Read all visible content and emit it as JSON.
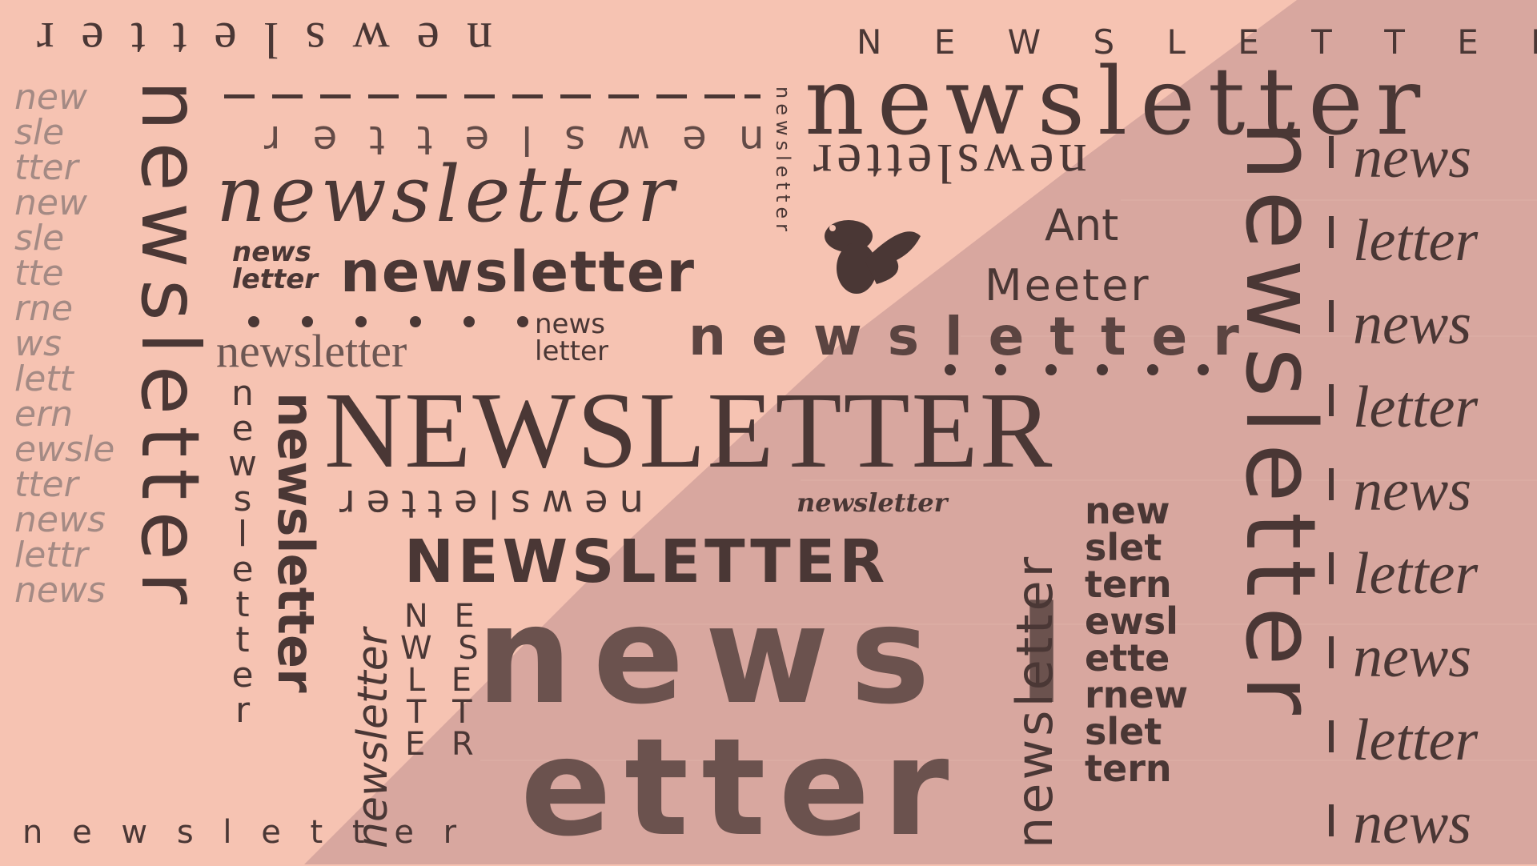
{
  "colors": {
    "bg_light": "#f6c3b2",
    "bg_dark": "#d8a79f",
    "ink": "#4a3735",
    "faded_ink": "#a48a84"
  },
  "brand": {
    "line1": "Ant",
    "line2": "Meeter",
    "mascot": "ant-mascot"
  },
  "w": "newsletter",
  "W": "NEWSLETTER",
  "spaced_caps": "N E W S L E T T E R",
  "spaced_lower": "n e w s l e t t e r",
  "news": "news",
  "letter": "letter",
  "newsl": "news l",
  "etter": "etter",
  "handwrite": [
    "new",
    "sle",
    "tter",
    "new",
    "sle",
    "tte",
    "rne",
    "ws",
    "lett",
    "ern",
    "ewsle",
    "tter",
    "news",
    "lettr",
    "news"
  ],
  "hand2": [
    "new",
    "slet",
    "tern",
    "ewsl",
    "ette",
    "rnew",
    "slet",
    "tern"
  ],
  "vlet": [
    "n",
    "e",
    "w",
    "s",
    "l",
    "e",
    "t",
    "t",
    "e",
    "r"
  ],
  "vcaps": [
    "N E",
    "W S",
    "L E",
    "T T",
    "E R"
  ],
  "italics": [
    "news",
    "letter",
    "news",
    "letter",
    "news",
    "letter",
    "news",
    "letter",
    "news"
  ],
  "hw_small": [
    "news",
    "letter"
  ]
}
